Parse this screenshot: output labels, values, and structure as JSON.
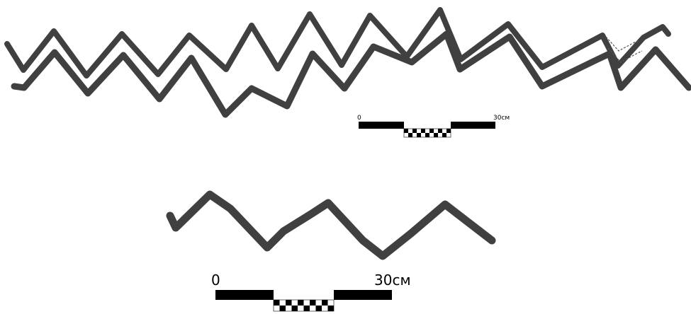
{
  "scalebar_top": {
    "label_start": "0",
    "label_end": "30см"
  },
  "scalebar_bottom": {
    "label_start": "0",
    "label_end": "30см"
  },
  "colors": {
    "pattern_stroke": "#404040",
    "scalebar": "#000000",
    "background": "#ffffff"
  }
}
